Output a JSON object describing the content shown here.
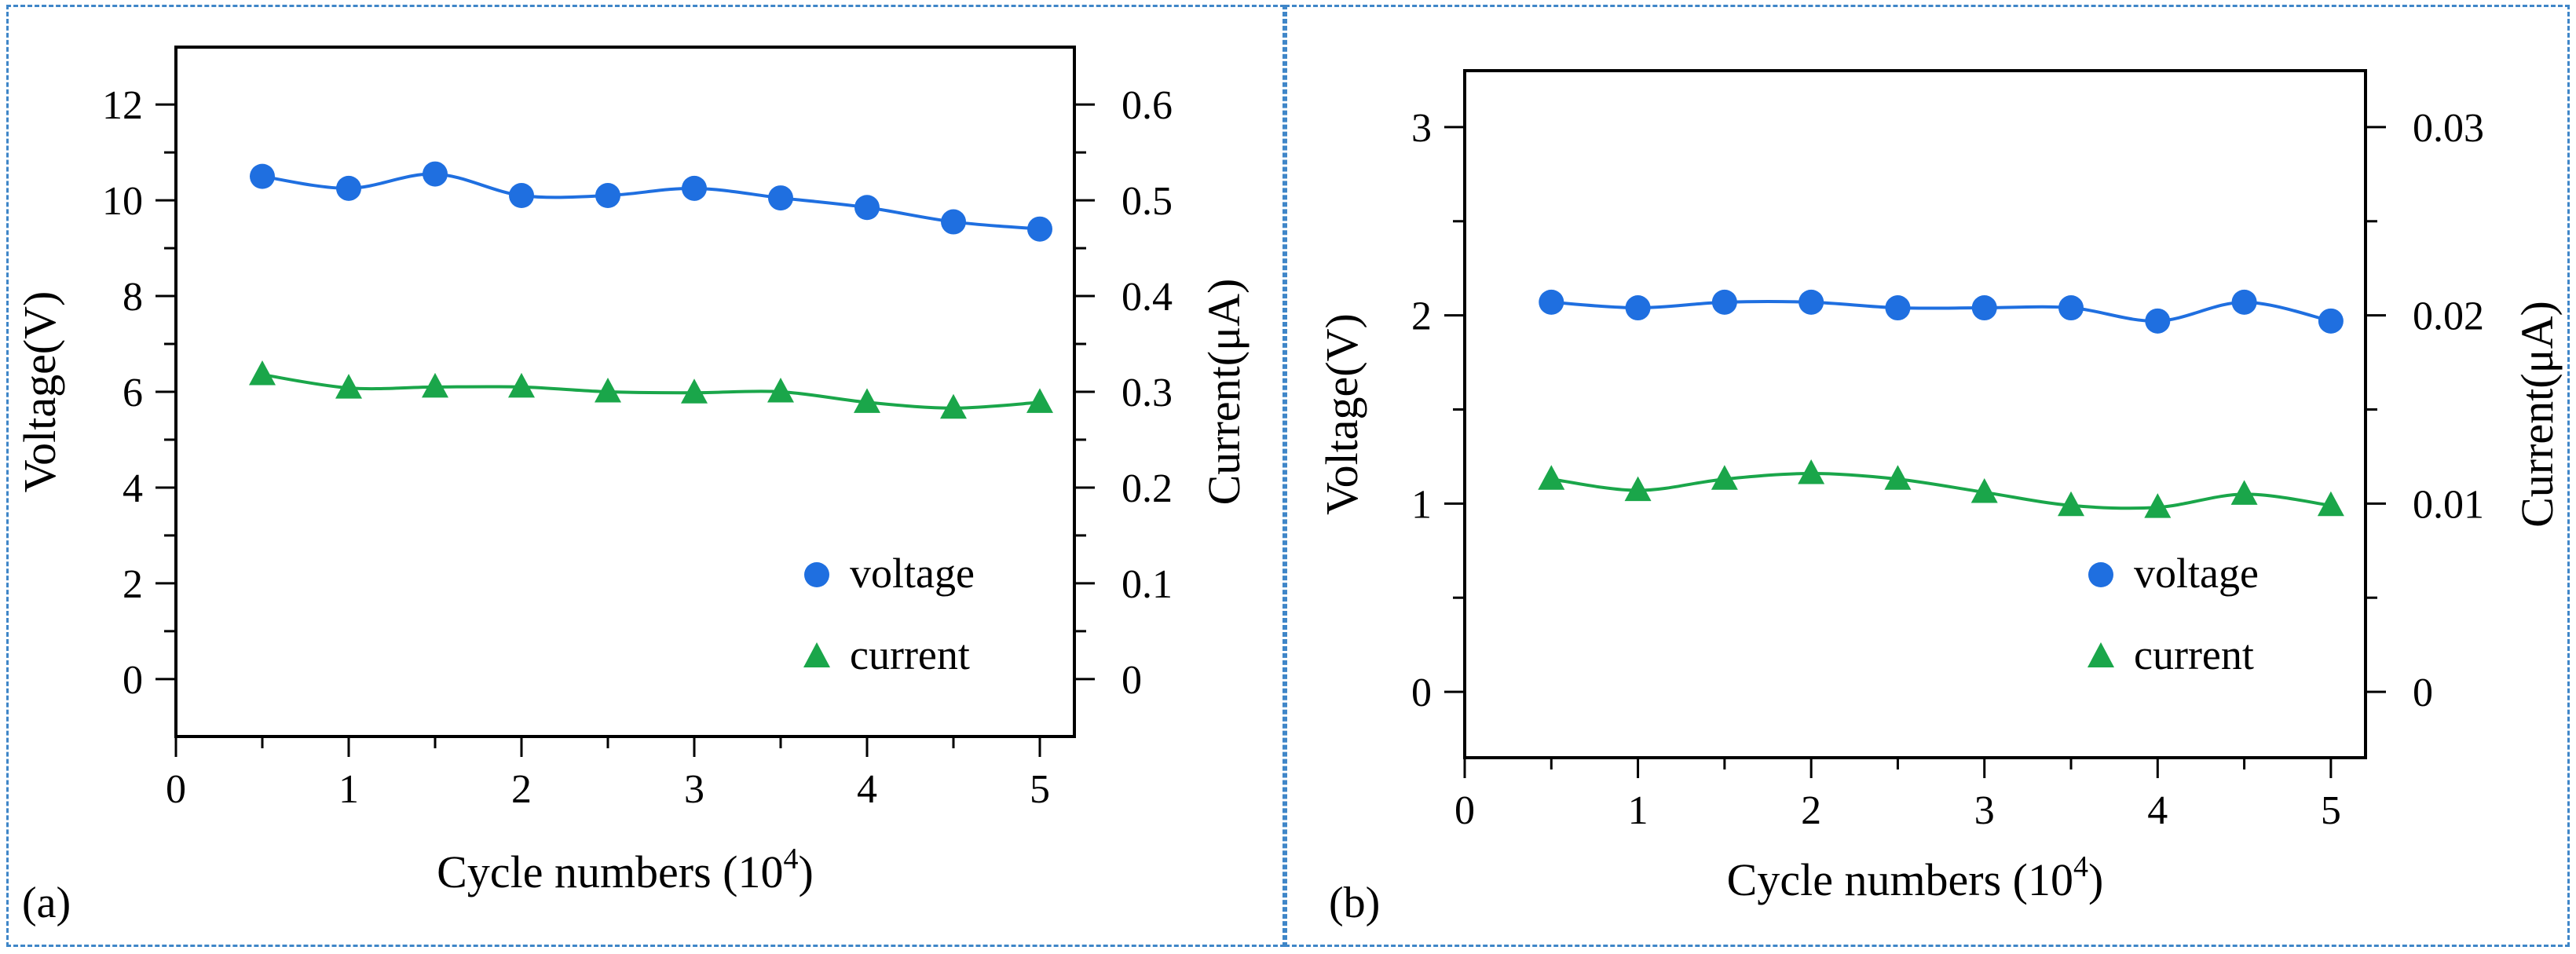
{
  "figure": {
    "panel_a_label": "(a)",
    "panel_b_label": "(b)"
  },
  "chart_data": [
    {
      "type": "line",
      "panel": "(a)",
      "xlabel": "Cycle numbers (10",
      "xlabel_exp": "4",
      "xlabel_close": ")",
      "ylabel_left": "Voltage(V)",
      "ylabel_right": "Current(μA)",
      "xlim": [
        0,
        5.2
      ],
      "ylim_left": [
        -1.2,
        13.2
      ],
      "ylim_right": [
        -0.06,
        0.66
      ],
      "x_ticks": [
        "0",
        "1",
        "2",
        "3",
        "4",
        "5"
      ],
      "y_left_ticks": [
        "0",
        "2",
        "4",
        "6",
        "8",
        "10",
        "12"
      ],
      "y_right_ticks": [
        "0",
        "0.1",
        "0.2",
        "0.3",
        "0.4",
        "0.5",
        "0.6"
      ],
      "legend": {
        "position": "bottom-right",
        "entries": [
          "voltage",
          "current"
        ]
      },
      "x": [
        0.5,
        1,
        1.5,
        2,
        2.5,
        3,
        3.5,
        4,
        4.5,
        5
      ],
      "series": [
        {
          "name": "voltage",
          "axis": "left",
          "marker": "circle",
          "color": "#1f6fe0",
          "values": [
            10.5,
            10.25,
            10.55,
            10.1,
            10.1,
            10.25,
            10.05,
            9.85,
            9.55,
            9.4
          ]
        },
        {
          "name": "current",
          "axis": "right",
          "marker": "triangle",
          "color": "#1aa64a",
          "values": [
            0.318,
            0.304,
            0.305,
            0.305,
            0.3,
            0.299,
            0.3,
            0.289,
            0.283,
            0.289
          ]
        }
      ]
    },
    {
      "type": "line",
      "panel": "(b)",
      "xlabel": "Cycle numbers (10",
      "xlabel_exp": "4",
      "xlabel_close": ")",
      "ylabel_left": "Voltage(V)",
      "ylabel_right": "Current(μA)",
      "xlim": [
        0,
        5.2
      ],
      "ylim_left": [
        -0.35,
        3.3
      ],
      "ylim_right": [
        -0.0035,
        0.033
      ],
      "x_ticks": [
        "0",
        "1",
        "2",
        "3",
        "4",
        "5"
      ],
      "y_left_ticks": [
        "0",
        "1",
        "2",
        "3"
      ],
      "y_right_ticks": [
        "0",
        "0.01",
        "0.02",
        "0.03"
      ],
      "legend": {
        "position": "bottom-right",
        "entries": [
          "voltage",
          "current"
        ]
      },
      "x": [
        0.5,
        1,
        1.5,
        2,
        2.5,
        3,
        3.5,
        4,
        4.5,
        5
      ],
      "series": [
        {
          "name": "voltage",
          "axis": "left",
          "marker": "circle",
          "color": "#1f6fe0",
          "values": [
            2.07,
            2.04,
            2.07,
            2.07,
            2.04,
            2.04,
            2.04,
            1.97,
            2.07,
            1.97
          ]
        },
        {
          "name": "current",
          "axis": "right",
          "marker": "triangle",
          "color": "#1aa64a",
          "values": [
            0.0113,
            0.0107,
            0.0113,
            0.0116,
            0.0113,
            0.0106,
            0.0099,
            0.0098,
            0.0105,
            0.0099
          ]
        }
      ]
    }
  ]
}
